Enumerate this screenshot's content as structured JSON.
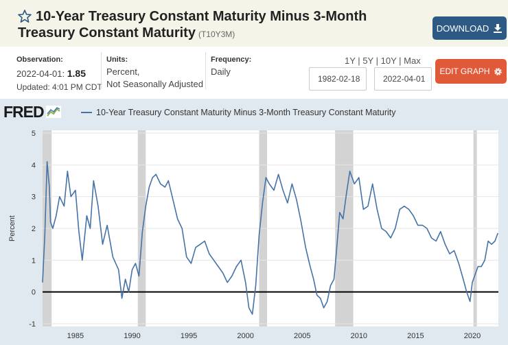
{
  "header": {
    "title_line1": "10-Year Treasury Constant Maturity Minus 3-Month",
    "title_line2": "Treasury Constant Maturity",
    "series_id": "(T10Y3M)",
    "download_label": "DOWNLOAD"
  },
  "meta": {
    "observation_label": "Observation:",
    "observation_date": "2022-04-01:",
    "observation_value": "1.85",
    "updated": "Updated: 4:01 PM CDT",
    "units_label": "Units:",
    "units_value1": "Percent,",
    "units_value2": "Not Seasonally Adjusted",
    "frequency_label": "Frequency:",
    "frequency_value": "Daily"
  },
  "range": {
    "r1": "1Y",
    "r2": "5Y",
    "r3": "10Y",
    "r4": "Max",
    "sep": "|",
    "start_date": "1982-02-18",
    "end_date": "2022-04-01"
  },
  "edit_label": "EDIT GRAPH",
  "logo": "FRED",
  "colors": {
    "series": "#4572a7",
    "recession": "#d3d3d3",
    "download": "#2d5a85",
    "edit": "#e05a3a"
  },
  "chart_data": {
    "type": "line",
    "legend": "10-Year Treasury Constant Maturity Minus 3-Month Treasury Constant Maturity",
    "ylabel": "Percent",
    "xlim": [
      1982.1,
      2022.3
    ],
    "ylim": [
      -1,
      5
    ],
    "yticks": [
      "5",
      "4",
      "3",
      "2",
      "1",
      "0",
      "-1"
    ],
    "xticks": [
      "1985",
      "1990",
      "1995",
      "2000",
      "2005",
      "2010",
      "2015",
      "2020"
    ],
    "recessions": [
      [
        1981.5,
        1982.9
      ],
      [
        1990.5,
        1991.2
      ],
      [
        2001.2,
        2001.9
      ],
      [
        2007.9,
        2009.5
      ],
      [
        2020.1,
        2020.4
      ]
    ],
    "x": [
      1982.1,
      1982.3,
      1982.5,
      1982.7,
      1982.8,
      1983.0,
      1983.3,
      1983.6,
      1984.0,
      1984.3,
      1984.6,
      1985.0,
      1985.3,
      1985.6,
      1986.0,
      1986.3,
      1986.6,
      1987.0,
      1987.4,
      1987.8,
      1988.3,
      1988.8,
      1989.1,
      1989.4,
      1989.7,
      1990.0,
      1990.3,
      1990.6,
      1990.9,
      1991.2,
      1991.5,
      1991.8,
      1992.1,
      1992.5,
      1992.9,
      1993.2,
      1993.6,
      1994.0,
      1994.4,
      1994.8,
      1995.2,
      1995.6,
      1996.0,
      1996.4,
      1996.8,
      1997.2,
      1997.6,
      1998.0,
      1998.4,
      1998.8,
      1999.2,
      1999.6,
      2000.0,
      2000.3,
      2000.6,
      2000.9,
      2001.2,
      2001.5,
      2001.8,
      2002.1,
      2002.5,
      2002.9,
      2003.3,
      2003.7,
      2004.1,
      2004.5,
      2004.9,
      2005.3,
      2005.7,
      2006.0,
      2006.3,
      2006.6,
      2006.9,
      2007.2,
      2007.5,
      2007.8,
      2008.0,
      2008.3,
      2008.6,
      2008.9,
      2009.2,
      2009.6,
      2010.0,
      2010.4,
      2010.8,
      2011.2,
      2011.6,
      2012.0,
      2012.4,
      2012.8,
      2013.2,
      2013.6,
      2014.0,
      2014.4,
      2014.8,
      2015.2,
      2015.6,
      2016.0,
      2016.4,
      2016.8,
      2017.2,
      2017.6,
      2018.0,
      2018.4,
      2018.8,
      2019.2,
      2019.5,
      2019.8,
      2020.0,
      2020.2,
      2020.5,
      2020.8,
      2021.1,
      2021.4,
      2021.7,
      2022.0,
      2022.25
    ],
    "y": [
      0.3,
      1.8,
      4.1,
      3.3,
      2.2,
      2.0,
      2.4,
      3.0,
      2.7,
      3.8,
      3.0,
      3.2,
      1.9,
      1.0,
      2.4,
      2.0,
      3.5,
      2.7,
      1.5,
      2.1,
      1.1,
      0.7,
      -0.2,
      0.4,
      0.0,
      0.7,
      0.9,
      0.5,
      1.9,
      2.7,
      3.3,
      3.6,
      3.7,
      3.4,
      3.3,
      3.5,
      2.9,
      2.3,
      2.0,
      1.1,
      0.9,
      1.4,
      1.5,
      1.6,
      1.2,
      1.0,
      0.8,
      0.6,
      0.3,
      0.5,
      0.8,
      1.0,
      0.3,
      -0.5,
      -0.7,
      0.2,
      1.8,
      2.8,
      3.6,
      3.4,
      3.2,
      3.7,
      3.2,
      2.8,
      3.4,
      2.9,
      2.2,
      1.4,
      0.8,
      0.4,
      -0.1,
      -0.2,
      -0.5,
      -0.3,
      0.2,
      0.4,
      1.2,
      2.5,
      2.3,
      3.1,
      3.8,
      3.4,
      3.6,
      2.6,
      2.7,
      3.4,
      2.6,
      2.0,
      1.9,
      1.7,
      2.0,
      2.6,
      2.7,
      2.6,
      2.4,
      2.1,
      2.1,
      2.0,
      1.7,
      1.6,
      1.9,
      1.5,
      1.2,
      1.3,
      0.9,
      0.4,
      0.0,
      -0.3,
      0.3,
      0.5,
      0.8,
      0.8,
      1.0,
      1.6,
      1.5,
      1.6,
      1.85
    ]
  }
}
